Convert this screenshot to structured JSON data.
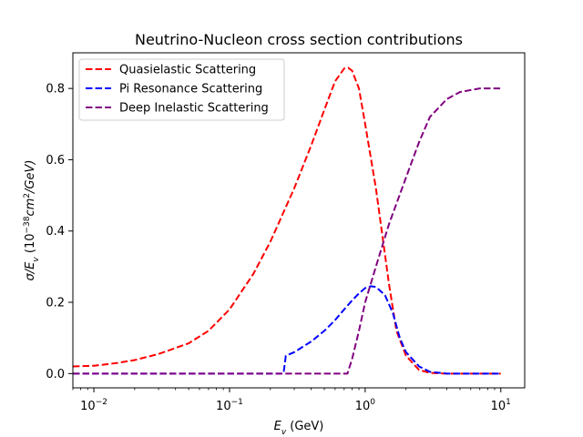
{
  "chart_data": {
    "type": "line",
    "title": "Neutrino-Nucleon cross section contributions",
    "xlabel_parts": [
      {
        "t": "E",
        "italic": true
      },
      {
        "t": "v",
        "italic": true,
        "sub": true
      },
      {
        "t": " (GeV)",
        "italic": false
      }
    ],
    "ylabel_parts": [
      {
        "t": "σ/E",
        "italic": true
      },
      {
        "t": "v",
        "italic": true,
        "sub": true
      },
      {
        "t": " (10",
        "italic": false
      },
      {
        "t": "−38",
        "italic": false,
        "sup": true
      },
      {
        "t": "cm",
        "italic": true
      },
      {
        "t": "2",
        "italic": false,
        "sup": true
      },
      {
        "t": "/GeV)",
        "italic": true
      }
    ],
    "x_scale": "log",
    "xlim": [
      0.007,
      15
    ],
    "ylim": [
      -0.04,
      0.9
    ],
    "x_ticks": [
      {
        "value": 0.01,
        "base": "10",
        "exp": "−2"
      },
      {
        "value": 0.1,
        "base": "10",
        "exp": "−1"
      },
      {
        "value": 1,
        "base": "10",
        "exp": "0"
      },
      {
        "value": 10,
        "base": "10",
        "exp": "1"
      }
    ],
    "y_ticks": [
      {
        "value": 0.0,
        "label": "0.0"
      },
      {
        "value": 0.2,
        "label": "0.2"
      },
      {
        "value": 0.4,
        "label": "0.4"
      },
      {
        "value": 0.6,
        "label": "0.6"
      },
      {
        "value": 0.8,
        "label": "0.8"
      }
    ],
    "grid": false,
    "legend_position": "top-left",
    "series": [
      {
        "name": "Quasielastic Scattering",
        "color": "#ff0000",
        "line_style": "dashed",
        "points": [
          [
            0.007,
            0.02
          ],
          [
            0.01,
            0.022
          ],
          [
            0.015,
            0.03
          ],
          [
            0.02,
            0.038
          ],
          [
            0.03,
            0.055
          ],
          [
            0.05,
            0.085
          ],
          [
            0.07,
            0.12
          ],
          [
            0.1,
            0.18
          ],
          [
            0.15,
            0.28
          ],
          [
            0.2,
            0.37
          ],
          [
            0.3,
            0.52
          ],
          [
            0.4,
            0.64
          ],
          [
            0.5,
            0.74
          ],
          [
            0.6,
            0.82
          ],
          [
            0.7,
            0.856
          ],
          [
            0.75,
            0.858
          ],
          [
            0.8,
            0.85
          ],
          [
            0.9,
            0.8
          ],
          [
            1.0,
            0.7
          ],
          [
            1.2,
            0.52
          ],
          [
            1.5,
            0.25
          ],
          [
            1.7,
            0.12
          ],
          [
            2.0,
            0.05
          ],
          [
            2.5,
            0.01
          ],
          [
            3.0,
            0.002
          ],
          [
            4.0,
            0.0
          ],
          [
            10.0,
            0.0
          ]
        ]
      },
      {
        "name": "Pi Resonance Scattering",
        "color": "#0000ff",
        "line_style": "dashed",
        "points": [
          [
            0.007,
            0.0
          ],
          [
            0.25,
            0.0
          ],
          [
            0.26,
            0.05
          ],
          [
            0.3,
            0.06
          ],
          [
            0.4,
            0.09
          ],
          [
            0.5,
            0.12
          ],
          [
            0.6,
            0.15
          ],
          [
            0.7,
            0.18
          ],
          [
            0.8,
            0.205
          ],
          [
            0.9,
            0.225
          ],
          [
            1.0,
            0.24
          ],
          [
            1.1,
            0.245
          ],
          [
            1.2,
            0.243
          ],
          [
            1.4,
            0.22
          ],
          [
            1.6,
            0.17
          ],
          [
            1.8,
            0.1
          ],
          [
            2.0,
            0.06
          ],
          [
            2.5,
            0.02
          ],
          [
            3.0,
            0.005
          ],
          [
            4.0,
            0.0
          ],
          [
            10.0,
            0.0
          ]
        ]
      },
      {
        "name": "Deep Inelastic Scattering",
        "color": "#800080",
        "line_style": "dashed",
        "points": [
          [
            0.007,
            0.0
          ],
          [
            0.74,
            0.0
          ],
          [
            0.8,
            0.04
          ],
          [
            0.9,
            0.12
          ],
          [
            1.0,
            0.2
          ],
          [
            1.2,
            0.3
          ],
          [
            1.5,
            0.42
          ],
          [
            2.0,
            0.55
          ],
          [
            2.5,
            0.65
          ],
          [
            3.0,
            0.72
          ],
          [
            4.0,
            0.77
          ],
          [
            5.0,
            0.79
          ],
          [
            7.0,
            0.8
          ],
          [
            10.0,
            0.8
          ]
        ]
      }
    ]
  }
}
